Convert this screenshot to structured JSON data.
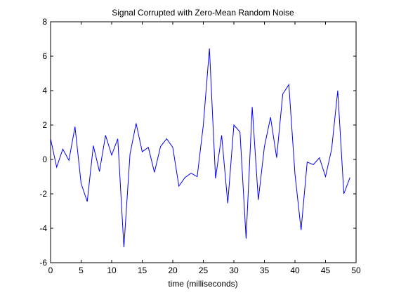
{
  "chart_data": {
    "type": "line",
    "title": "Signal Corrupted with Zero-Mean Random Noise",
    "xlabel": "time (milliseconds)",
    "ylabel": "",
    "xlim": [
      0,
      50
    ],
    "ylim": [
      -6,
      8
    ],
    "xticks": [
      0,
      5,
      10,
      15,
      20,
      25,
      30,
      35,
      40,
      45,
      50
    ],
    "yticks": [
      -6,
      -4,
      -2,
      0,
      2,
      4,
      6,
      8
    ],
    "grid": false,
    "series": [
      {
        "color": "#0000ff",
        "x": [
          0,
          1,
          2,
          3,
          4,
          5,
          6,
          7,
          8,
          9,
          10,
          11,
          12,
          13,
          14,
          15,
          16,
          17,
          18,
          19,
          20,
          21,
          22,
          23,
          24,
          25,
          26,
          27,
          28,
          29,
          30,
          31,
          32,
          33,
          34,
          35,
          36,
          37,
          38,
          39,
          40,
          41,
          42,
          43,
          44,
          45,
          46,
          47,
          48,
          49
        ],
        "y": [
          1.2,
          -0.45,
          0.6,
          -0.05,
          1.9,
          -1.4,
          -2.45,
          0.8,
          -0.7,
          1.4,
          0.25,
          1.2,
          -5.1,
          0.3,
          2.1,
          0.45,
          0.7,
          -0.75,
          0.75,
          1.2,
          0.7,
          -1.55,
          -1.05,
          -0.8,
          -1.0,
          2.0,
          6.45,
          -1.1,
          1.4,
          -2.55,
          2.0,
          1.6,
          -4.6,
          3.05,
          -2.35,
          0.75,
          2.45,
          0.1,
          3.8,
          4.35,
          -0.85,
          -4.1,
          -0.15,
          -0.3,
          0.1,
          -1.0,
          0.6,
          4.0,
          -2.0,
          -1.05
        ]
      }
    ]
  }
}
